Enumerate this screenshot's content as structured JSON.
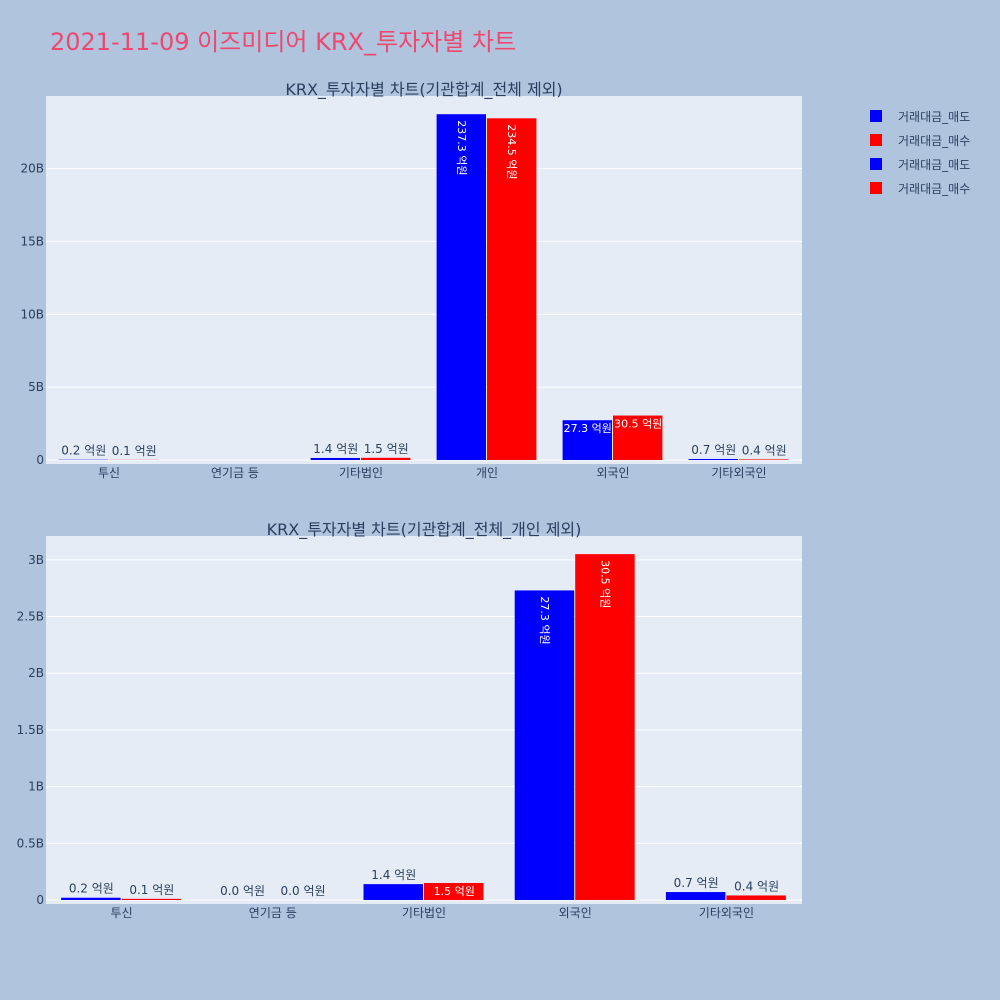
{
  "page": {
    "title": "2021-11-09 이즈미디어 KRX_투자자별 차트"
  },
  "legend": {
    "items": [
      {
        "label": "거래대금_매도",
        "color": "#0000ff"
      },
      {
        "label": "거래대금_매수",
        "color": "#ff0000"
      },
      {
        "label": "거래대금_매도",
        "color": "#0000ff"
      },
      {
        "label": "거래대금_매수",
        "color": "#ff0000"
      }
    ]
  },
  "chart_data": [
    {
      "type": "bar",
      "title": "KRX_투자자별 차트(기관합계_전체 제외)",
      "categories": [
        "투신",
        "연기금 등",
        "기타법인",
        "개인",
        "외국인",
        "기타외국인"
      ],
      "series": [
        {
          "name": "거래대금_매도",
          "color": "#0000ff",
          "values": [
            20000000,
            0,
            140000000,
            23730000000,
            2730000000,
            70000000
          ],
          "labels": [
            "0.2 억원",
            "",
            "1.4 억원",
            "237.3 억원",
            "27.3 억원",
            "0.7 억원"
          ]
        },
        {
          "name": "거래대금_매수",
          "color": "#ff0000",
          "values": [
            10000000,
            0,
            150000000,
            23450000000,
            3050000000,
            40000000
          ],
          "labels": [
            "0.1 억원",
            "",
            "1.5 억원",
            "234.5 억원",
            "30.5 억원",
            "0.4 억원"
          ]
        }
      ],
      "yticks": [
        {
          "value": 0,
          "label": "0"
        },
        {
          "value": 5000000000,
          "label": "5B"
        },
        {
          "value": 10000000000,
          "label": "10B"
        },
        {
          "value": 15000000000,
          "label": "15B"
        },
        {
          "value": 20000000000,
          "label": "20B"
        }
      ],
      "ylim": [
        0,
        24980000000
      ],
      "grid": true
    },
    {
      "type": "bar",
      "title": "KRX_투자자별 차트(기관합계_전체_개인 제외)",
      "categories": [
        "투신",
        "연기금 등",
        "기타법인",
        "외국인",
        "기타외국인"
      ],
      "series": [
        {
          "name": "거래대금_매도",
          "color": "#0000ff",
          "values": [
            20000000,
            0,
            140000000,
            2730000000,
            70000000
          ],
          "labels": [
            "0.2 억원",
            "0.0 억원",
            "1.4 억원",
            "27.3 억원",
            "0.7 억원"
          ]
        },
        {
          "name": "거래대금_매수",
          "color": "#ff0000",
          "values": [
            10000000,
            0,
            150000000,
            3050000000,
            40000000
          ],
          "labels": [
            "0.1 억원",
            "0.0 억원",
            "1.5 억원",
            "30.5 억원",
            "0.4 억원"
          ]
        }
      ],
      "yticks": [
        {
          "value": 0,
          "label": "0"
        },
        {
          "value": 500000000,
          "label": "0.5B"
        },
        {
          "value": 1000000000,
          "label": "1B"
        },
        {
          "value": 1500000000,
          "label": "1.5B"
        },
        {
          "value": 2000000000,
          "label": "2B"
        },
        {
          "value": 2500000000,
          "label": "2.5B"
        },
        {
          "value": 3000000000,
          "label": "3B"
        }
      ],
      "ylim": [
        0,
        3210000000
      ],
      "grid": true
    }
  ]
}
